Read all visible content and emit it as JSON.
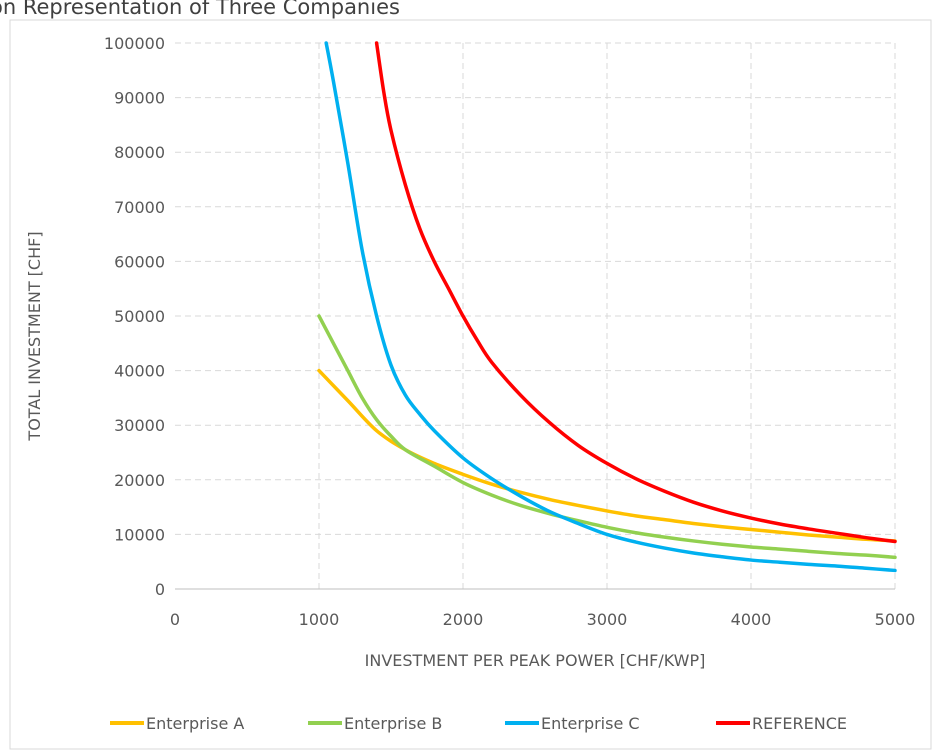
{
  "chart_data": {
    "type": "line",
    "title": "...on Representation of Three Companies",
    "xlabel": "INVESTMENT PER PEAK POWER [CHF/KWP]",
    "ylabel": "TOTAL INVESTMENT [CHF]",
    "xlim": [
      0,
      5000
    ],
    "ylim": [
      0,
      100000
    ],
    "x_ticks": [
      "0",
      "1000",
      "2000",
      "3000",
      "4000",
      "5000"
    ],
    "y_ticks": [
      "0",
      "10000",
      "20000",
      "30000",
      "40000",
      "50000",
      "60000",
      "70000",
      "80000",
      "90000",
      "100000"
    ],
    "grid": true,
    "legend_position": "bottom",
    "series": [
      {
        "name": "Enterprise A",
        "color": "#FFC000",
        "x": [
          1000,
          1200,
          1400,
          1600,
          1800,
          2000,
          2200,
          2400,
          2600,
          2800,
          3000,
          3200,
          3400,
          3600,
          3800,
          4000,
          4200,
          4400,
          4600,
          4800,
          5000
        ],
        "y": [
          40000,
          34500,
          29000,
          25500,
          23000,
          21000,
          19200,
          17700,
          16400,
          15300,
          14300,
          13400,
          12700,
          12000,
          11400,
          10900,
          10400,
          9900,
          9500,
          9100,
          8800
        ]
      },
      {
        "name": "Enterprise B",
        "color": "#92D050",
        "x": [
          1000,
          1100,
          1200,
          1300,
          1400,
          1500,
          1600,
          1800,
          2000,
          2200,
          2400,
          2600,
          2800,
          3000,
          3200,
          3400,
          3600,
          3800,
          4000,
          4200,
          4400,
          4600,
          4800,
          5000
        ],
        "y": [
          50000,
          45000,
          40000,
          35000,
          31000,
          28000,
          25500,
          22500,
          19500,
          17200,
          15300,
          13800,
          12500,
          11300,
          10300,
          9500,
          8800,
          8200,
          7700,
          7300,
          6900,
          6500,
          6200,
          5800
        ]
      },
      {
        "name": "Enterprise C",
        "color": "#00B0F0",
        "x": [
          1050,
          1100,
          1200,
          1300,
          1400,
          1500,
          1600,
          1700,
          1800,
          2000,
          2200,
          2400,
          2600,
          2800,
          3000,
          3200,
          3400,
          3600,
          3800,
          4000,
          4200,
          4400,
          4600,
          4800,
          5000
        ],
        "y": [
          100000,
          93000,
          78000,
          62000,
          50000,
          41000,
          35500,
          32000,
          29000,
          24000,
          20200,
          17000,
          14200,
          12000,
          10000,
          8600,
          7500,
          6600,
          5900,
          5300,
          4900,
          4500,
          4200,
          3800,
          3400
        ]
      },
      {
        "name": "REFERENCE",
        "color": "#FF0000",
        "x": [
          1400,
          1450,
          1500,
          1600,
          1700,
          1800,
          1900,
          2000,
          2100,
          2200,
          2400,
          2600,
          2800,
          3000,
          3200,
          3400,
          3600,
          3800,
          4000,
          4200,
          4400,
          4600,
          4800,
          5000
        ],
        "y": [
          100000,
          91000,
          84000,
          74000,
          66000,
          60000,
          55000,
          50000,
          45500,
          41500,
          35500,
          30500,
          26300,
          23000,
          20200,
          17900,
          15900,
          14300,
          13000,
          11900,
          11000,
          10200,
          9400,
          8700
        ]
      }
    ]
  }
}
